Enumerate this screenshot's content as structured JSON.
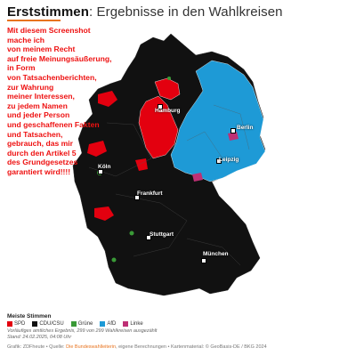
{
  "header": {
    "title_bold": "Erststimmen",
    "title_rest": ": Ergebnisse in den Wahlkreisen"
  },
  "overlay_text": [
    "Mit diesem Screenshot",
    "mache ich",
    "von meinem Recht",
    "auf freie Meinungsäußerung,",
    "in Form",
    "von Tatsachenberichten,",
    "zur Wahrung",
    "meiner Interessen,",
    "zu jedem Namen",
    "und jeder Person",
    "und geschaffenen Fakten",
    "und Tatsachen,",
    "gebrauch, das mir",
    "durch den Artikel 5",
    "des Grundgesetzes",
    "garantiert wird!!!!"
  ],
  "cities": {
    "hamburg": "Hamburg",
    "berlin": "Berlin",
    "leipzig": "Leipzig",
    "koeln": "Köln",
    "frankfurt": "Frankfurt",
    "stuttgart": "Stuttgart",
    "muenchen": "München"
  },
  "legend": {
    "title": "Meiste Stimmen",
    "items": [
      {
        "label": "SPD",
        "color": "#e3000f"
      },
      {
        "label": "CDU/CSU",
        "color": "#111111"
      },
      {
        "label": "Grüne",
        "color": "#3a9a37"
      },
      {
        "label": "AfD",
        "color": "#1e9ad6"
      },
      {
        "label": "Linke",
        "color": "#be3075"
      }
    ],
    "note_1": "Vorläufiges amtliches Ergebnis, 299 von 299 Wahlkreisen ausgezählt",
    "note_2": "Stand: 24.02.2025, 04:08 Uhr"
  },
  "footer": {
    "prefix": "Grafik: ZDFheute • Quelle: ",
    "link": "Die Bundeswahlleiterin",
    "suffix": ", eigene Berechnungen • Kartenmaterial: © GeoBasis-DE / BKG 2024"
  },
  "colors": {
    "cdu": "#111111",
    "afd": "#1e9ad6",
    "spd": "#e3000f",
    "gruene": "#3a9a37",
    "linke": "#be3075",
    "accent": "#e8731e"
  }
}
